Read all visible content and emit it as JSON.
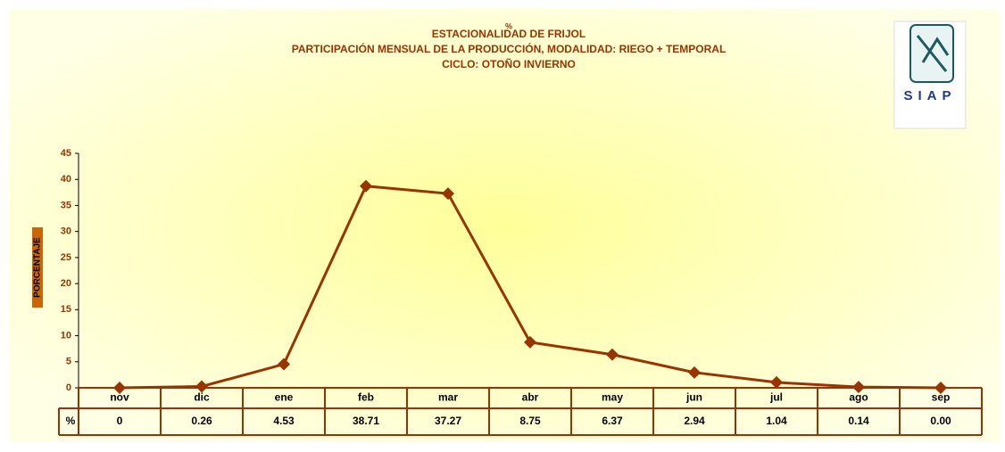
{
  "chart_data": {
    "type": "line",
    "title": "ESTACIONALIDAD DE  FRIJOL",
    "subtitle": [
      "PARTICIPACIÓN MENSUAL DE LA PRODUCCIÓN, MODALIDAD: RIEGO + TEMPORAL",
      "CICLO:  OTOÑO INVIERNO"
    ],
    "annotations": [
      "%"
    ],
    "logo": "SIAP",
    "y_label": "PORCENTAJE",
    "table_row_label": "%",
    "categories": [
      "nov",
      "dic",
      "ene",
      "feb",
      "mar",
      "abr",
      "may",
      "jun",
      "jul",
      "ago",
      "sep"
    ],
    "values": [
      0,
      0.26,
      4.53,
      38.71,
      37.27,
      8.75,
      6.37,
      2.94,
      1.04,
      0.14,
      0.0
    ],
    "value_labels": [
      "0",
      "0.26",
      "4.53",
      "38.71",
      "37.27",
      "8.75",
      "6.37",
      "2.94",
      "1.04",
      "0.14",
      "0.00"
    ],
    "color": "#993300",
    "ylim": [
      0,
      45
    ],
    "yticks": [
      0,
      5,
      10,
      15,
      20,
      25,
      30,
      35,
      40,
      45
    ]
  }
}
